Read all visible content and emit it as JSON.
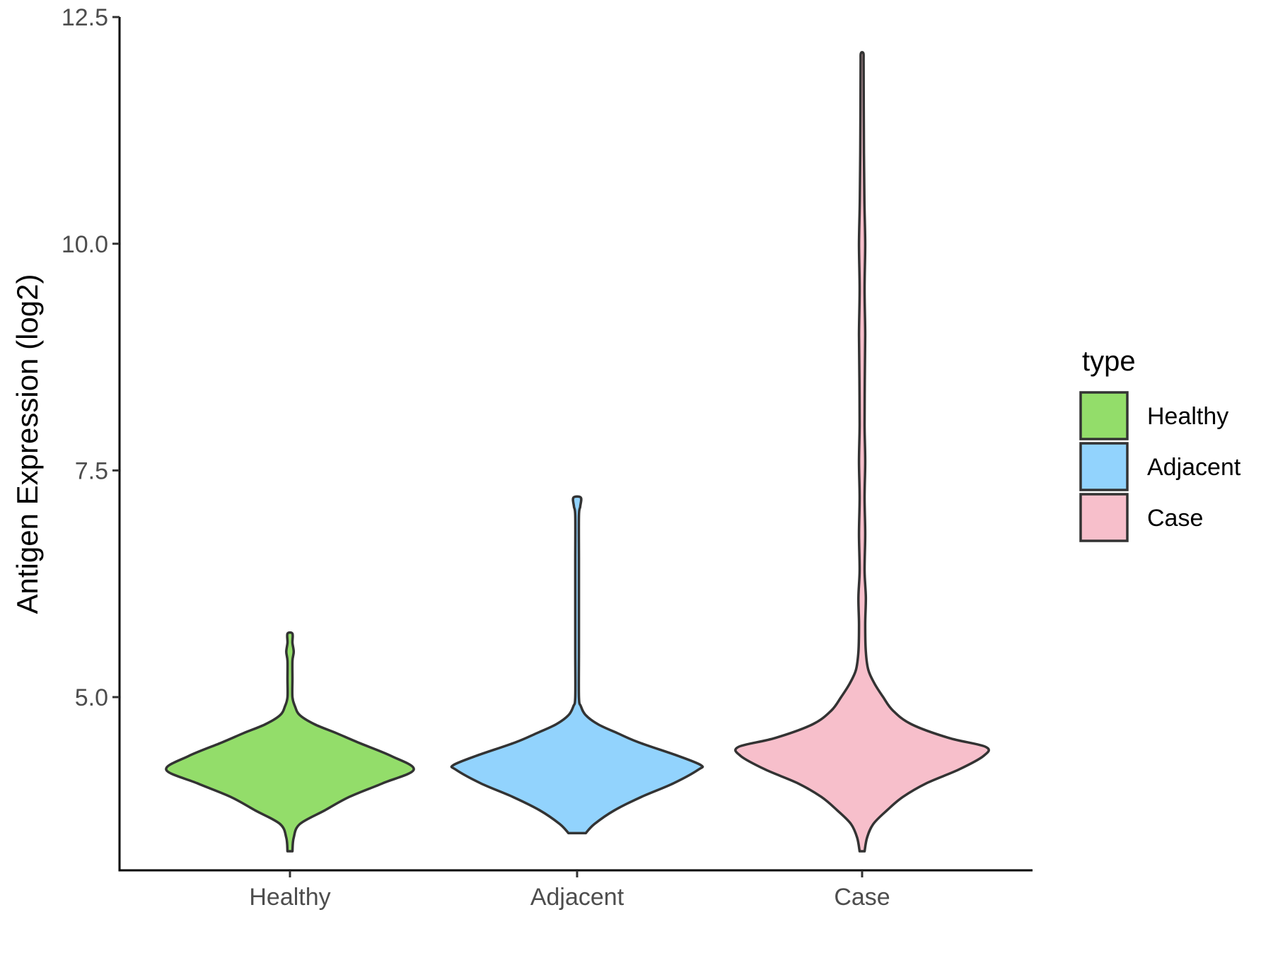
{
  "chart_data": {
    "type": "violin",
    "title": "",
    "xlabel": "",
    "ylabel": "Antigen Expression (log2)",
    "ylim": [
      3.1,
      12.5
    ],
    "yticks": [
      "5.0",
      "7.5",
      "10.0",
      "12.5"
    ],
    "ytick_values": [
      5.0,
      7.5,
      10.0,
      12.5
    ],
    "categories": [
      "Healthy",
      "Adjacent",
      "Case"
    ],
    "legend": {
      "title": "type",
      "placement": "right",
      "entries": [
        {
          "label": "Healthy",
          "color": "#93dd6a"
        },
        {
          "label": "Adjacent",
          "color": "#92d3fd"
        },
        {
          "label": "Case",
          "color": "#f7bfcb"
        }
      ]
    },
    "grid": false,
    "series": [
      {
        "category": "Healthy",
        "color": "#93dd6a",
        "y_min": 3.3,
        "y_max": 5.7,
        "density_profile": [
          [
            3.3,
            0.02
          ],
          [
            3.45,
            0.03
          ],
          [
            3.6,
            0.08
          ],
          [
            3.75,
            0.28
          ],
          [
            3.9,
            0.48
          ],
          [
            4.05,
            0.75
          ],
          [
            4.2,
            1.0
          ],
          [
            4.35,
            0.82
          ],
          [
            4.5,
            0.55
          ],
          [
            4.6,
            0.38
          ],
          [
            4.7,
            0.2
          ],
          [
            4.8,
            0.08
          ],
          [
            4.9,
            0.04
          ],
          [
            5.0,
            0.02
          ],
          [
            5.2,
            0.02
          ],
          [
            5.4,
            0.02
          ],
          [
            5.5,
            0.03
          ],
          [
            5.6,
            0.02
          ],
          [
            5.7,
            0.02
          ]
        ]
      },
      {
        "category": "Adjacent",
        "color": "#92d3fd",
        "y_min": 3.5,
        "y_max": 7.2,
        "density_profile": [
          [
            3.5,
            0.07
          ],
          [
            3.6,
            0.14
          ],
          [
            3.75,
            0.3
          ],
          [
            3.9,
            0.52
          ],
          [
            4.05,
            0.78
          ],
          [
            4.2,
            0.98
          ],
          [
            4.25,
            1.0
          ],
          [
            4.35,
            0.82
          ],
          [
            4.5,
            0.5
          ],
          [
            4.6,
            0.33
          ],
          [
            4.7,
            0.17
          ],
          [
            4.8,
            0.07
          ],
          [
            4.9,
            0.03
          ],
          [
            5.0,
            0.015
          ],
          [
            5.5,
            0.015
          ],
          [
            6.0,
            0.015
          ],
          [
            6.5,
            0.015
          ],
          [
            7.0,
            0.015
          ],
          [
            7.1,
            0.025
          ],
          [
            7.2,
            0.03
          ]
        ]
      },
      {
        "category": "Case",
        "color": "#f7bfcb",
        "y_min": 3.3,
        "y_max": 12.1,
        "density_profile": [
          [
            3.3,
            0.02
          ],
          [
            3.45,
            0.04
          ],
          [
            3.6,
            0.09
          ],
          [
            3.75,
            0.2
          ],
          [
            3.9,
            0.33
          ],
          [
            4.05,
            0.52
          ],
          [
            4.2,
            0.78
          ],
          [
            4.35,
            0.98
          ],
          [
            4.45,
            1.0
          ],
          [
            4.55,
            0.7
          ],
          [
            4.7,
            0.4
          ],
          [
            4.85,
            0.25
          ],
          [
            5.0,
            0.17
          ],
          [
            5.15,
            0.1
          ],
          [
            5.3,
            0.05
          ],
          [
            5.5,
            0.03
          ],
          [
            5.8,
            0.025
          ],
          [
            6.1,
            0.03
          ],
          [
            6.4,
            0.02
          ],
          [
            6.8,
            0.025
          ],
          [
            7.2,
            0.02
          ],
          [
            7.6,
            0.025
          ],
          [
            8.0,
            0.02
          ],
          [
            8.5,
            0.022
          ],
          [
            9.0,
            0.025
          ],
          [
            9.5,
            0.02
          ],
          [
            10.0,
            0.025
          ],
          [
            10.5,
            0.018
          ],
          [
            11.0,
            0.015
          ],
          [
            11.5,
            0.013
          ],
          [
            12.0,
            0.012
          ],
          [
            12.1,
            0.01
          ]
        ]
      }
    ]
  }
}
